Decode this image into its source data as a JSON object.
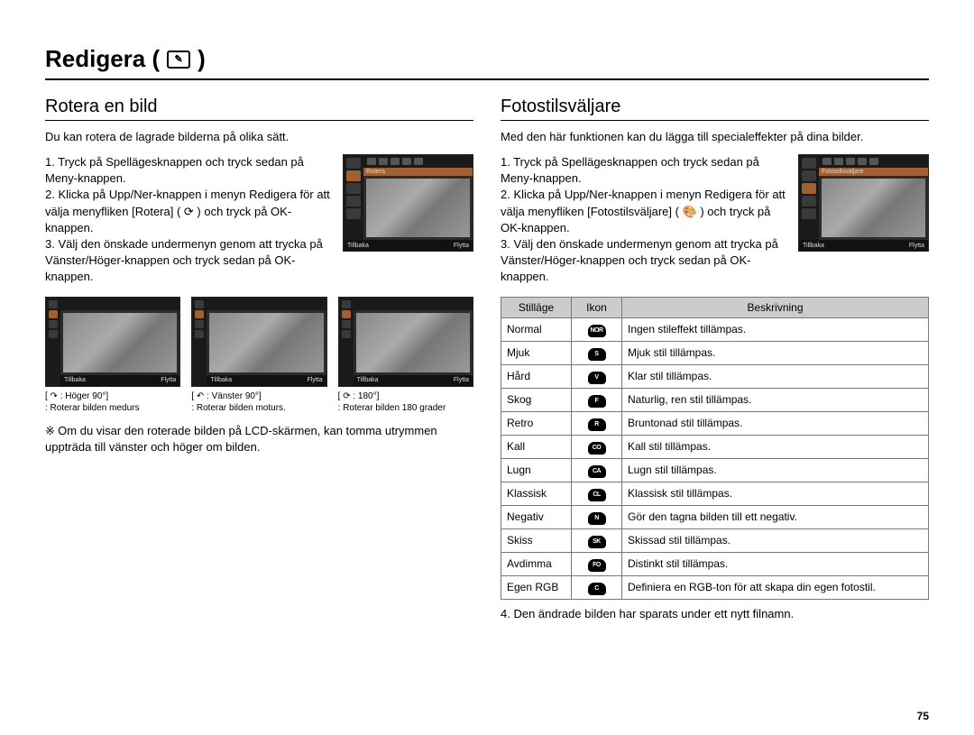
{
  "page": {
    "title": "Redigera (",
    "title_tail": " )",
    "page_number": "75"
  },
  "left": {
    "heading": "Rotera en bild",
    "intro": "Du kan rotera de lagrade bilderna på olika sätt.",
    "step1": "1. Tryck på Spellägesknappen och tryck sedan på Meny-knappen.",
    "step2": "2. Klicka på Upp/Ner-knappen i menyn Redigera för att välja menyfliken [Rotera] ( ⟳ ) och tryck på OK-knappen.",
    "step3": "3. Välj den önskade undermenyn genom att trycka på Vänster/Höger-knappen och tryck sedan på OK-knappen.",
    "thumb_label": "Rotera",
    "thumb_back": "Tillbaka",
    "thumb_move": "Flytta",
    "triplet": [
      {
        "title": "[ ↷ : Höger 90°]",
        "desc": ": Roterar bilden medurs"
      },
      {
        "title": "[ ↶ : Vänster 90°]",
        "desc": ": Roterar bilden moturs."
      },
      {
        "title": "[ ⟳ : 180°]",
        "desc": ": Roterar bilden 180 grader"
      }
    ],
    "note": "Om du visar den roterade bilden på LCD-skärmen, kan tomma utrymmen uppträda till vänster och höger om bilden.",
    "note_prefix": "※ "
  },
  "right": {
    "heading": "Fotostilsväljare",
    "intro": "Med den här funktionen kan du lägga till specialeffekter på dina bilder.",
    "step1": "1. Tryck på Spellägesknappen och tryck sedan på Meny-knappen.",
    "step2": "2. Klicka på Upp/Ner-knappen i menyn Redigera för att välja menyfliken [Fotostilsväljare] ( 🎨 ) och tryck på OK-knappen.",
    "step3": "3. Välj den önskade undermenyn genom att trycka på Vänster/Höger-knappen och tryck sedan på OK-knappen.",
    "thumb_label": "Fotostilsväljare",
    "thumb_back": "Tillbaka",
    "thumb_move": "Flytta",
    "table": {
      "headers": [
        "Stilläge",
        "Ikon",
        "Beskrivning"
      ],
      "rows": [
        {
          "mode": "Normal",
          "icon": "NOR",
          "desc": "Ingen stileffekt tillämpas."
        },
        {
          "mode": "Mjuk",
          "icon": "S",
          "desc": "Mjuk stil tillämpas."
        },
        {
          "mode": "Hård",
          "icon": "V",
          "desc": "Klar stil tillämpas."
        },
        {
          "mode": "Skog",
          "icon": "F",
          "desc": "Naturlig, ren stil tillämpas."
        },
        {
          "mode": "Retro",
          "icon": "R",
          "desc": "Bruntonad stil tillämpas."
        },
        {
          "mode": "Kall",
          "icon": "CO",
          "desc": "Kall stil tillämpas."
        },
        {
          "mode": "Lugn",
          "icon": "CA",
          "desc": "Lugn stil tillämpas."
        },
        {
          "mode": "Klassisk",
          "icon": "CL",
          "desc": "Klassisk stil tillämpas."
        },
        {
          "mode": "Negativ",
          "icon": "N",
          "desc": "Gör den tagna bilden till ett negativ."
        },
        {
          "mode": "Skiss",
          "icon": "SK",
          "desc": "Skissad stil tillämpas."
        },
        {
          "mode": "Avdimma",
          "icon": "FO",
          "desc": "Distinkt stil tillämpas."
        },
        {
          "mode": "Egen RGB",
          "icon": "C",
          "desc": "Definiera en RGB-ton för att skapa din egen fotostil."
        }
      ]
    },
    "after_table": "4. Den ändrade bilden har sparats under ett nytt filnamn."
  }
}
